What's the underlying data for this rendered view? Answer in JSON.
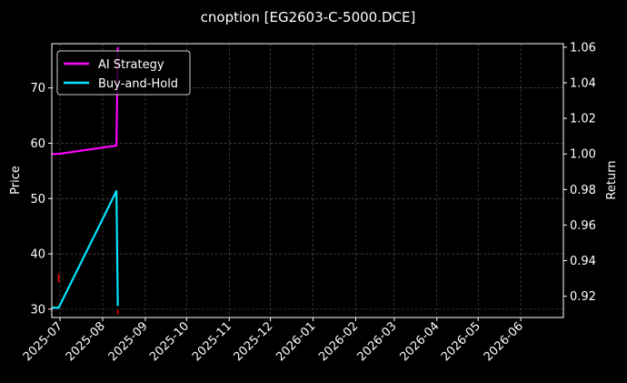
{
  "chart_data": {
    "type": "line",
    "title": "cnoption [EG2603-C-5000.DCE]",
    "ylabel_left": "Price",
    "ylabel_right": "Return",
    "x_ticks": [
      "2025-07",
      "2025-08",
      "2025-09",
      "2025-10",
      "2025-11",
      "2025-12",
      "2026-01",
      "2026-02",
      "2026-03",
      "2026-04",
      "2026-05",
      "2026-06"
    ],
    "x_range": [
      "2025-06-25",
      "2026-07-02"
    ],
    "y_left": {
      "range": [
        28.5,
        78
      ],
      "ticks": [
        30,
        40,
        50,
        60,
        70
      ]
    },
    "y_right": {
      "range": [
        0.908,
        1.062
      ],
      "ticks": [
        0.92,
        0.94,
        0.96,
        0.98,
        1.0,
        1.02,
        1.04,
        1.06
      ],
      "tick_labels": [
        "0.92",
        "0.94",
        "0.96",
        "0.98",
        "1.00",
        "1.02",
        "1.04",
        "1.06"
      ]
    },
    "grid": true,
    "legend_position": "top-left",
    "series": [
      {
        "name": "AI Strategy",
        "axis": "right",
        "color": "#ff00ff",
        "points": [
          [
            "2025-06-25",
            1.0
          ],
          [
            "2025-06-30",
            1.0
          ],
          [
            "2025-08-11",
            1.0047
          ],
          [
            "2025-08-12",
            1.06
          ]
        ]
      },
      {
        "name": "Buy-and-Hold",
        "axis": "right",
        "color": "#00e5ff",
        "points": [
          [
            "2025-06-25",
            0.9135
          ],
          [
            "2025-06-30",
            0.9135
          ],
          [
            "2025-08-11",
            0.9791
          ],
          [
            "2025-08-12",
            0.9145
          ]
        ]
      }
    ],
    "markers": {
      "color": "#ff0000",
      "points": [
        [
          "2025-06-30",
          36.0
        ],
        [
          "2025-06-30",
          35.3
        ],
        [
          "2025-08-12",
          29.5
        ]
      ]
    }
  }
}
